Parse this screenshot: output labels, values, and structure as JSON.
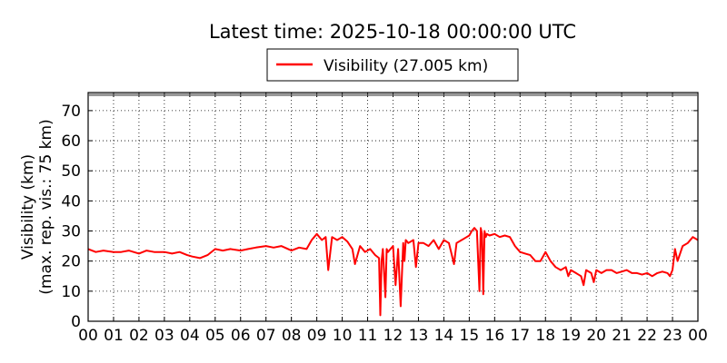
{
  "chart_data": {
    "type": "line",
    "title": "Latest time: 2025-10-18 00:00:00 UTC",
    "ylabel_line1": "Visibility (km)",
    "ylabel_line2": "(max. rep. vis.: 75 km)",
    "xlabel": "",
    "grid": true,
    "legend_position": "top-center",
    "xlim": [
      0,
      24
    ],
    "ylim": [
      0,
      76
    ],
    "x_ticks": [
      0,
      1,
      2,
      3,
      4,
      5,
      6,
      7,
      8,
      9,
      10,
      11,
      12,
      13,
      14,
      15,
      16,
      17,
      18,
      19,
      20,
      21,
      22,
      23,
      24
    ],
    "x_tick_labels": [
      "00",
      "01",
      "02",
      "03",
      "04",
      "05",
      "06",
      "07",
      "08",
      "09",
      "10",
      "11",
      "12",
      "13",
      "14",
      "15",
      "16",
      "17",
      "18",
      "19",
      "20",
      "21",
      "22",
      "23",
      "00"
    ],
    "y_ticks": [
      0,
      10,
      20,
      30,
      40,
      50,
      60,
      70
    ],
    "y_tick_labels": [
      "0",
      "10",
      "20",
      "30",
      "40",
      "50",
      "60",
      "70"
    ],
    "series": [
      {
        "name": "Visibility (27.005 km)",
        "color": "#ff0000",
        "x": [
          0,
          0.3,
          0.6,
          1,
          1.3,
          1.6,
          2,
          2.3,
          2.6,
          3,
          3.3,
          3.6,
          3.9,
          4.1,
          4.4,
          4.7,
          5,
          5.3,
          5.6,
          6,
          6.3,
          6.6,
          7,
          7.3,
          7.6,
          8,
          8.3,
          8.6,
          8.8,
          9,
          9.2,
          9.35,
          9.45,
          9.6,
          9.8,
          10,
          10.2,
          10.4,
          10.5,
          10.7,
          10.9,
          11.1,
          11.3,
          11.45,
          11.5,
          11.55,
          11.6,
          11.7,
          11.75,
          11.8,
          11.9,
          12,
          12.1,
          12.2,
          12.3,
          12.4,
          12.45,
          12.5,
          12.6,
          12.8,
          12.9,
          13,
          13.2,
          13.4,
          13.6,
          13.8,
          14,
          14.2,
          14.4,
          14.5,
          14.7,
          14.9,
          15,
          15.1,
          15.2,
          15.3,
          15.4,
          15.45,
          15.5,
          15.55,
          15.6,
          15.65,
          15.7,
          15.8,
          16,
          16.2,
          16.4,
          16.6,
          16.8,
          17,
          17.2,
          17.4,
          17.6,
          17.8,
          18,
          18.2,
          18.4,
          18.6,
          18.8,
          18.9,
          19,
          19.2,
          19.4,
          19.5,
          19.6,
          19.8,
          19.9,
          20,
          20.2,
          20.4,
          20.6,
          20.8,
          21,
          21.2,
          21.4,
          21.6,
          21.8,
          22,
          22.2,
          22.4,
          22.6,
          22.8,
          22.9,
          23,
          23.1,
          23.2,
          23.4,
          23.6,
          23.8,
          24
        ],
        "y": [
          24,
          23,
          23.5,
          23,
          23,
          23.5,
          22.5,
          23.5,
          23,
          23,
          22.5,
          23,
          22,
          21.5,
          21,
          22,
          24,
          23.5,
          24,
          23.5,
          24,
          24.5,
          25,
          24.5,
          25,
          23.5,
          24.5,
          24,
          27,
          29,
          27,
          28,
          17,
          28,
          27,
          28,
          26.5,
          24,
          19,
          25,
          23,
          24,
          22,
          21,
          2,
          20,
          24,
          8,
          24,
          23,
          24,
          25,
          12,
          24,
          5,
          26,
          20,
          27,
          26,
          27,
          18,
          26,
          26,
          25,
          27,
          24,
          27,
          26,
          19,
          26,
          27,
          28,
          28.5,
          30,
          31,
          30,
          10,
          31,
          29,
          9,
          30,
          28,
          29,
          28.5,
          29,
          28,
          28.5,
          28,
          25,
          23,
          22.5,
          22,
          20,
          20,
          23,
          20,
          18,
          17,
          18,
          15,
          17,
          16,
          15,
          12,
          17,
          16,
          13,
          17,
          16,
          17,
          17,
          16,
          16.5,
          17,
          16,
          16,
          15.5,
          16,
          15,
          16,
          16.5,
          16,
          15,
          17,
          24,
          20,
          25,
          26,
          28,
          27
        ]
      }
    ]
  }
}
